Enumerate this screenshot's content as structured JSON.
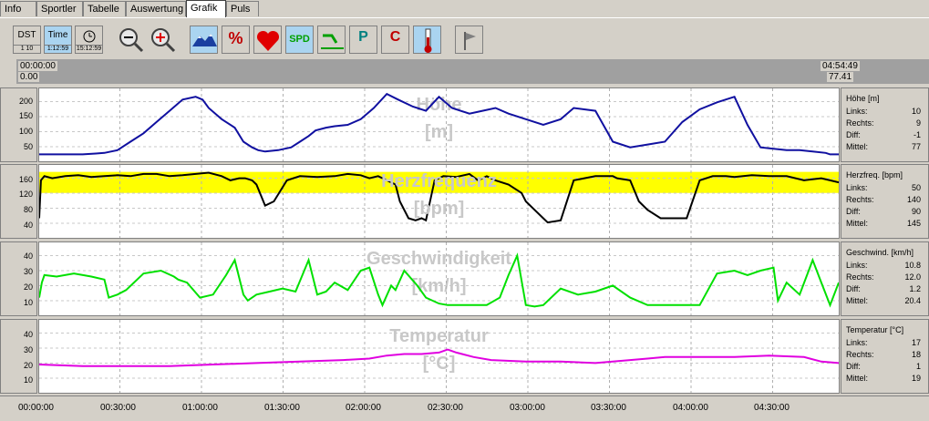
{
  "tabs": [
    "Info",
    "Sportler",
    "Tabelle",
    "Auswertung",
    "Grafik",
    "Puls"
  ],
  "active_tab": "Grafik",
  "toolbar": {
    "dst": {
      "label": "DST",
      "sub": "1    10"
    },
    "time": {
      "label": "Time",
      "sub": "1:12:59"
    },
    "clock": {
      "sub": "15:12:59"
    },
    "spd_label": "SPD",
    "p_label": "P",
    "c_label": "C",
    "percent_label": "%"
  },
  "time_range": {
    "left_time": "00:00:00",
    "left_value": "0.00",
    "right_time": "04:54:49",
    "right_value": "77.41"
  },
  "panels": [
    {
      "title_line1": "Höhe",
      "title_line2": "[m]",
      "ticks": [
        "200",
        "150",
        "100",
        "50"
      ],
      "info_title": "Höhe [m]",
      "rows": [
        {
          "label": "Links:",
          "value": "10"
        },
        {
          "label": "Rechts:",
          "value": "9"
        },
        {
          "label": "Diff:",
          "value": "-1"
        },
        {
          "label": "Mittel:",
          "value": "77"
        }
      ]
    },
    {
      "title_line1": "Herzfrequenz",
      "title_line2": "[bpm]",
      "ticks": [
        "160",
        "120",
        "80",
        "40"
      ],
      "info_title": "Herzfreq. [bpm]",
      "rows": [
        {
          "label": "Links:",
          "value": "50"
        },
        {
          "label": "Rechts:",
          "value": "140"
        },
        {
          "label": "Diff:",
          "value": "90"
        },
        {
          "label": "Mittel:",
          "value": "145"
        }
      ]
    },
    {
      "title_line1": "Geschwindigkeit",
      "title_line2": "[km/h]",
      "ticks": [
        "40",
        "30",
        "20",
        "10"
      ],
      "info_title": "Geschwind. [km/h]",
      "rows": [
        {
          "label": "Links:",
          "value": "10.8"
        },
        {
          "label": "Rechts:",
          "value": "12.0"
        },
        {
          "label": "Diff:",
          "value": "1.2"
        },
        {
          "label": "Mittel:",
          "value": "20.4"
        }
      ]
    },
    {
      "title_line1": "Temperatur",
      "title_line2": "[°C]",
      "ticks": [
        "40",
        "30",
        "20",
        "10"
      ],
      "info_title": "Temperatur [°C]",
      "rows": [
        {
          "label": "Links:",
          "value": "17"
        },
        {
          "label": "Rechts:",
          "value": "18"
        },
        {
          "label": "Diff:",
          "value": "1"
        },
        {
          "label": "Mittel:",
          "value": "19"
        }
      ]
    }
  ],
  "x_ticks": [
    "00:00:00",
    "00:30:00",
    "01:00:00",
    "01:30:00",
    "02:00:00",
    "02:30:00",
    "03:00:00",
    "03:30:00",
    "04:00:00",
    "04:30:00"
  ],
  "colors": {
    "altitude": "#1010a0",
    "heartrate": "#000000",
    "hr_zone": "#ffff00",
    "speed": "#00e000",
    "temperature": "#e000e0"
  },
  "chart_data": [
    {
      "type": "line",
      "title": "Höhe",
      "ylabel": "[m]",
      "ylim": [
        0,
        240
      ],
      "x": [
        0,
        10,
        25,
        50,
        65,
        75,
        90,
        105,
        120,
        135,
        150,
        165,
        180,
        188,
        195,
        210,
        225,
        235,
        245,
        252,
        260,
        275,
        290,
        300,
        310,
        318,
        330,
        340,
        355,
        370,
        385,
        400,
        413,
        430,
        445,
        460,
        475,
        495,
        510,
        525,
        540,
        560,
        580,
        600,
        615,
        640,
        660,
        680,
        700,
        720,
        740,
        760,
        780,
        800,
        815,
        830,
        845,
        860,
        875,
        890,
        905,
        910,
        920
      ],
      "y": [
        15,
        15,
        15,
        15,
        18,
        20,
        30,
        60,
        90,
        130,
        170,
        210,
        220,
        210,
        180,
        140,
        110,
        60,
        40,
        30,
        25,
        30,
        40,
        60,
        80,
        100,
        110,
        115,
        120,
        140,
        180,
        230,
        210,
        185,
        170,
        220,
        180,
        160,
        170,
        180,
        160,
        140,
        120,
        140,
        180,
        170,
        60,
        40,
        50,
        60,
        130,
        175,
        200,
        220,
        120,
        40,
        35,
        30,
        30,
        25,
        20,
        15,
        15
      ]
    },
    {
      "type": "line",
      "title": "Herzfrequenz",
      "ylabel": "[bpm]",
      "ylim": [
        20,
        180
      ],
      "zone": [
        120,
        170
      ],
      "x": [
        0,
        2,
        6,
        15,
        30,
        45,
        60,
        75,
        90,
        105,
        120,
        135,
        150,
        165,
        180,
        195,
        210,
        220,
        230,
        237,
        245,
        250,
        260,
        270,
        285,
        300,
        320,
        340,
        355,
        370,
        380,
        390,
        400,
        410,
        415,
        425,
        433,
        440,
        445,
        455,
        465,
        480,
        495,
        505,
        515,
        525,
        540,
        555,
        560,
        570,
        580,
        585,
        600,
        615,
        640,
        660,
        665,
        680,
        690,
        700,
        715,
        730,
        745,
        760,
        775,
        790,
        800,
        810,
        820,
        840,
        860,
        880,
        900,
        910,
        920
      ],
      "y": [
        60,
        150,
        160,
        155,
        160,
        162,
        158,
        160,
        162,
        160,
        165,
        165,
        160,
        162,
        165,
        168,
        160,
        150,
        155,
        155,
        150,
        140,
        90,
        100,
        150,
        160,
        158,
        160,
        165,
        162,
        155,
        160,
        150,
        140,
        100,
        60,
        55,
        60,
        55,
        150,
        160,
        158,
        165,
        150,
        160,
        150,
        140,
        120,
        100,
        80,
        60,
        50,
        55,
        150,
        160,
        160,
        155,
        150,
        100,
        80,
        60,
        60,
        60,
        150,
        160,
        160,
        158,
        160,
        162,
        160,
        160,
        150,
        155,
        150,
        145
      ]
    },
    {
      "type": "line",
      "title": "Geschwindigkeit",
      "ylabel": "[km/h]",
      "ylim": [
        0,
        45
      ],
      "x": [
        0,
        3,
        6,
        20,
        40,
        60,
        75,
        80,
        90,
        100,
        120,
        140,
        155,
        160,
        170,
        185,
        200,
        215,
        225,
        235,
        240,
        250,
        265,
        280,
        295,
        310,
        320,
        330,
        340,
        355,
        370,
        380,
        390,
        395,
        405,
        410,
        420,
        435,
        445,
        460,
        470,
        480,
        490,
        500,
        515,
        530,
        540,
        550,
        560,
        570,
        580,
        600,
        620,
        640,
        660,
        680,
        700,
        720,
        740,
        760,
        780,
        800,
        815,
        830,
        845,
        850,
        860,
        875,
        890,
        900,
        910,
        920
      ],
      "y": [
        10,
        20,
        25,
        24,
        26,
        24,
        22,
        10,
        12,
        15,
        26,
        28,
        24,
        22,
        20,
        10,
        12,
        25,
        35,
        12,
        8,
        12,
        14,
        16,
        14,
        35,
        12,
        14,
        20,
        15,
        28,
        30,
        12,
        5,
        18,
        15,
        28,
        18,
        10,
        6,
        5,
        5,
        5,
        5,
        5,
        10,
        25,
        38,
        5,
        4,
        5,
        16,
        12,
        14,
        18,
        10,
        5,
        5,
        5,
        5,
        26,
        28,
        25,
        28,
        30,
        8,
        20,
        12,
        35,
        20,
        5,
        20
      ]
    },
    {
      "type": "line",
      "title": "Temperatur",
      "ylabel": "[°C]",
      "ylim": [
        0,
        45
      ],
      "x": [
        0,
        50,
        100,
        150,
        200,
        250,
        300,
        350,
        380,
        400,
        420,
        440,
        460,
        470,
        480,
        500,
        520,
        560,
        600,
        640,
        680,
        700,
        720,
        760,
        800,
        840,
        880,
        900,
        920
      ],
      "y": [
        17,
        16,
        16,
        16,
        17,
        18,
        19,
        20,
        21,
        23,
        24,
        24,
        25,
        27,
        25,
        22,
        20,
        19,
        19,
        18,
        20,
        21,
        22,
        22,
        22,
        23,
        22,
        19,
        18
      ]
    }
  ]
}
